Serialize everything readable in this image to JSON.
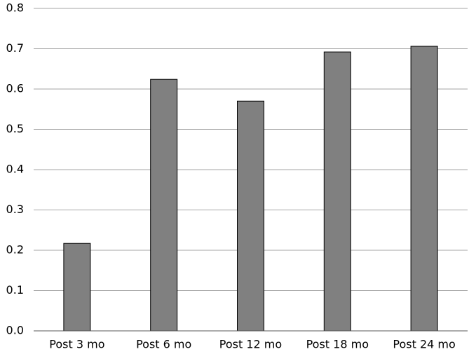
{
  "chart_data": {
    "type": "bar",
    "categories": [
      "Post 3 mo",
      "Post 6 mo",
      "Post 12 mo",
      "Post 18 mo",
      "Post 24 mo"
    ],
    "values": [
      0.217,
      0.624,
      0.57,
      0.692,
      0.706
    ],
    "color": "#808080",
    "ylim": [
      0,
      0.8
    ],
    "yticks": [
      {
        "value": 0,
        "label": "0.0"
      },
      0.1,
      0.2,
      0.3,
      0.4,
      0.5,
      0.6,
      0.7,
      0.8
    ],
    "grid": true
  }
}
